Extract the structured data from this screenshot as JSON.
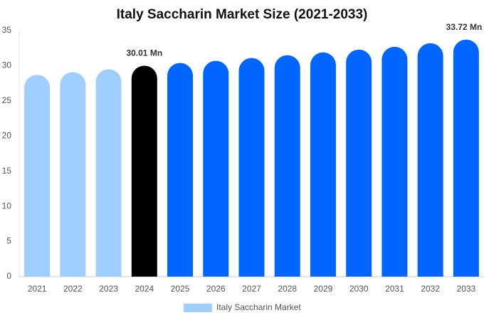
{
  "chart_data": {
    "type": "bar",
    "title": "Italy Saccharin Market Size (2021-2033)",
    "categories": [
      "2021",
      "2022",
      "2023",
      "2024",
      "2025",
      "2026",
      "2027",
      "2028",
      "2029",
      "2030",
      "2031",
      "2032",
      "2033"
    ],
    "series": [
      {
        "name": "Italy Saccharin Market",
        "color": "#a0cfff",
        "colors": [
          "#a0cfff",
          "#a0cfff",
          "#a0cfff",
          "#000000",
          "#0066ff",
          "#0066ff",
          "#0066ff",
          "#0066ff",
          "#0066ff",
          "#0066ff",
          "#0066ff",
          "#0066ff",
          "#0066ff"
        ],
        "values": [
          28.7,
          29.1,
          29.5,
          30.01,
          30.4,
          30.7,
          31.1,
          31.5,
          31.9,
          32.3,
          32.7,
          33.2,
          33.72
        ],
        "value_labels": [
          null,
          null,
          null,
          "30.01 Mn",
          null,
          null,
          null,
          null,
          null,
          null,
          null,
          null,
          "33.72 Mn"
        ]
      }
    ],
    "ylim": [
      0,
      35
    ],
    "yticks": [
      0,
      5,
      10,
      15,
      20,
      25,
      30,
      35
    ],
    "grid": false
  }
}
